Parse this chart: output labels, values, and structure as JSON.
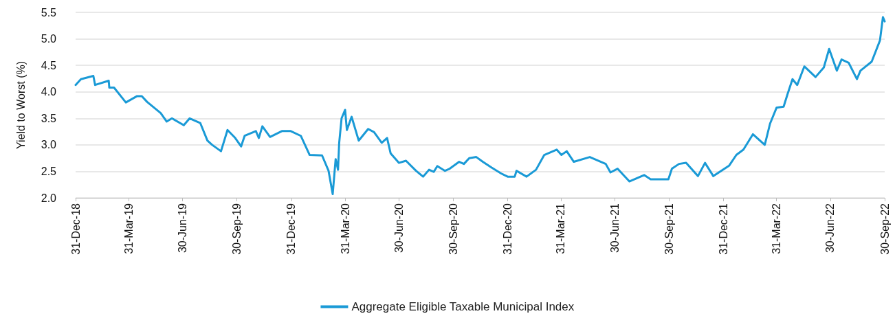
{
  "chart_data": {
    "type": "line",
    "ylabel": "Yield to Worst (%)",
    "x": [
      "2018-12-31",
      "2019-01-09",
      "2019-01-30",
      "2019-02-02",
      "2019-02-25",
      "2019-02-26",
      "2019-03-06",
      "2019-03-26",
      "2019-04-14",
      "2019-04-22",
      "2019-05-01",
      "2019-05-24",
      "2019-06-03",
      "2019-06-12",
      "2019-07-02",
      "2019-07-12",
      "2019-07-30",
      "2019-08-11",
      "2019-08-19",
      "2019-09-03",
      "2019-09-14",
      "2019-09-27",
      "2019-10-07",
      "2019-10-13",
      "2019-11-01",
      "2019-11-06",
      "2019-11-12",
      "2019-11-25",
      "2019-12-15",
      "2019-12-30",
      "2020-01-16",
      "2020-01-31",
      "2020-02-21",
      "2020-03-03",
      "2020-03-10",
      "2020-03-15",
      "2020-03-19",
      "2020-03-21",
      "2020-03-25",
      "2020-03-31",
      "2020-04-03",
      "2020-04-11",
      "2020-04-23",
      "2020-05-09",
      "2020-05-19",
      "2020-06-01",
      "2020-06-10",
      "2020-06-16",
      "2020-06-30",
      "2020-07-12",
      "2020-07-29",
      "2020-08-10",
      "2020-08-20",
      "2020-08-28",
      "2020-09-03",
      "2020-09-16",
      "2020-09-24",
      "2020-10-10",
      "2020-10-18",
      "2020-10-27",
      "2020-11-08",
      "2020-11-19",
      "2020-12-04",
      "2020-12-20",
      "2020-12-31",
      "2021-01-12",
      "2021-01-15",
      "2021-02-01",
      "2021-02-17",
      "2021-03-03",
      "2021-03-24",
      "2021-04-01",
      "2021-04-10",
      "2021-04-22",
      "2021-05-19",
      "2021-06-15",
      "2021-06-23",
      "2021-07-05",
      "2021-07-25",
      "2021-08-19",
      "2021-08-30",
      "2021-09-29",
      "2021-10-05",
      "2021-10-17",
      "2021-10-29",
      "2021-11-18",
      "2021-11-30",
      "2021-12-14",
      "2022-01-10",
      "2022-01-22",
      "2022-02-03",
      "2022-02-19",
      "2022-03-11",
      "2022-03-14",
      "2022-03-20",
      "2022-03-31",
      "2022-04-12",
      "2022-04-19",
      "2022-04-27",
      "2022-05-05",
      "2022-05-17",
      "2022-06-05",
      "2022-06-19",
      "2022-06-28",
      "2022-07-11",
      "2022-07-19",
      "2022-07-31",
      "2022-08-14",
      "2022-08-20",
      "2022-09-08",
      "2022-09-22",
      "2022-09-27",
      "2022-09-30"
    ],
    "series": [
      {
        "name": "Aggregate Eligible Taxable Municipal Index",
        "color": "#1a9ad6",
        "values": [
          4.13,
          4.24,
          4.3,
          4.13,
          4.21,
          4.08,
          4.08,
          3.8,
          3.92,
          3.92,
          3.81,
          3.6,
          3.44,
          3.5,
          3.37,
          3.5,
          3.41,
          3.08,
          3.0,
          2.88,
          3.28,
          3.13,
          2.97,
          3.17,
          3.26,
          3.13,
          3.35,
          3.15,
          3.26,
          3.26,
          3.17,
          2.81,
          2.8,
          2.51,
          2.07,
          2.73,
          2.53,
          3.04,
          3.5,
          3.66,
          3.28,
          3.53,
          3.08,
          3.3,
          3.24,
          3.04,
          3.13,
          2.84,
          2.66,
          2.7,
          2.51,
          2.4,
          2.53,
          2.49,
          2.6,
          2.51,
          2.55,
          2.68,
          2.64,
          2.75,
          2.77,
          2.68,
          2.57,
          2.46,
          2.4,
          2.4,
          2.51,
          2.4,
          2.53,
          2.81,
          2.91,
          2.81,
          2.88,
          2.68,
          2.77,
          2.64,
          2.48,
          2.55,
          2.31,
          2.43,
          2.35,
          2.35,
          2.55,
          2.64,
          2.66,
          2.41,
          2.66,
          2.41,
          2.61,
          2.81,
          2.91,
          3.2,
          3.0,
          3.13,
          3.4,
          3.7,
          3.72,
          3.97,
          4.24,
          4.13,
          4.48,
          4.28,
          4.46,
          4.81,
          4.4,
          4.61,
          4.55,
          4.24,
          4.4,
          4.57,
          4.97,
          5.41,
          5.33
        ]
      }
    ],
    "xlim": [
      "2018-12-31",
      "2022-09-30"
    ],
    "xticks": [
      {
        "value": "2018-12-31",
        "label": "31-Dec-18"
      },
      {
        "value": "2019-03-31",
        "label": "31-Mar-19"
      },
      {
        "value": "2019-06-30",
        "label": "30-Jun-19"
      },
      {
        "value": "2019-09-30",
        "label": "30-Sep-19"
      },
      {
        "value": "2019-12-31",
        "label": "31-Dec-19"
      },
      {
        "value": "2020-03-31",
        "label": "31-Mar-20"
      },
      {
        "value": "2020-06-30",
        "label": "30-Jun-20"
      },
      {
        "value": "2020-09-30",
        "label": "30-Sep-20"
      },
      {
        "value": "2020-12-31",
        "label": "31-Dec-20"
      },
      {
        "value": "2021-03-31",
        "label": "31-Mar-21"
      },
      {
        "value": "2021-06-30",
        "label": "30-Jun-21"
      },
      {
        "value": "2021-09-30",
        "label": "30-Sep-21"
      },
      {
        "value": "2021-12-31",
        "label": "31-Dec-21"
      },
      {
        "value": "2022-03-31",
        "label": "31-Mar-22"
      },
      {
        "value": "2022-06-30",
        "label": "30-Jun-22"
      },
      {
        "value": "2022-09-30",
        "label": "30-Sep-22"
      }
    ],
    "ylim": [
      2.0,
      5.5
    ],
    "yticks": [
      {
        "value": 2,
        "label": "2.0"
      },
      {
        "value": 2.5,
        "label": "2.5"
      },
      {
        "value": 3,
        "label": "3.0"
      },
      {
        "value": 3.5,
        "label": "3.5"
      },
      {
        "value": 4,
        "label": "4.0"
      },
      {
        "value": 4.5,
        "label": "4.5"
      },
      {
        "value": 5,
        "label": "5.0"
      },
      {
        "value": 5.5,
        "label": "5.5"
      }
    ],
    "grid": "y",
    "legend": "bottom",
    "marker": "none",
    "line_style": "solid"
  }
}
